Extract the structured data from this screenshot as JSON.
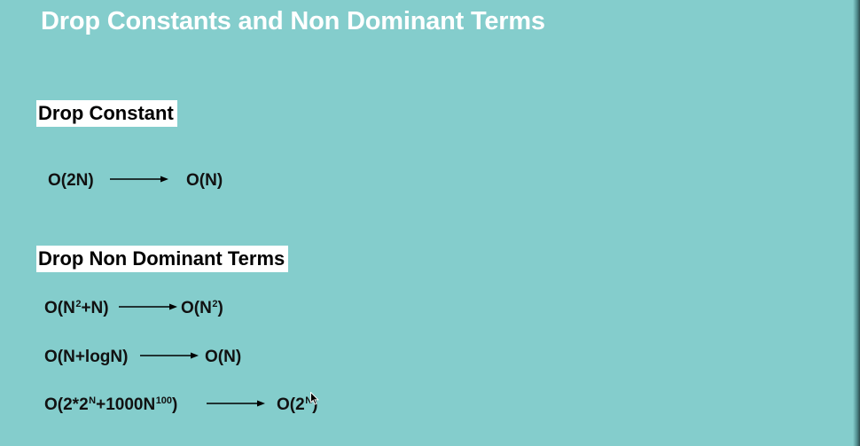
{
  "title": "Drop Constants and Non Dominant Terms",
  "sections": [
    {
      "heading": "Drop Constant"
    },
    {
      "heading": "Drop Non Dominant Terms"
    }
  ],
  "rules": [
    {
      "from": {
        "pre": "O(2N)"
      },
      "to": {
        "pre": "O(N)"
      }
    },
    {
      "from": {
        "pre": "O(N",
        "sup": "2",
        "post": "+N)"
      },
      "to": {
        "pre": "O(N",
        "sup": "2",
        "post": ")"
      }
    },
    {
      "from": {
        "pre": "O(N+logN)"
      },
      "to": {
        "pre": "O(N)"
      }
    },
    {
      "from": {
        "pre": "O(2*2",
        "sup": "N",
        "mid": "+1000N",
        "sup2": "100",
        "post": ")"
      },
      "to": {
        "pre": "O(2",
        "sup": "N",
        "post": ")"
      }
    }
  ],
  "icons": {
    "arrow": "right-arrow-icon",
    "cursor": "mouse-pointer-icon"
  },
  "colors": {
    "background": "#84cdcc",
    "title": "#ffffff",
    "heading_bg": "#ffffff",
    "text": "#111111"
  }
}
